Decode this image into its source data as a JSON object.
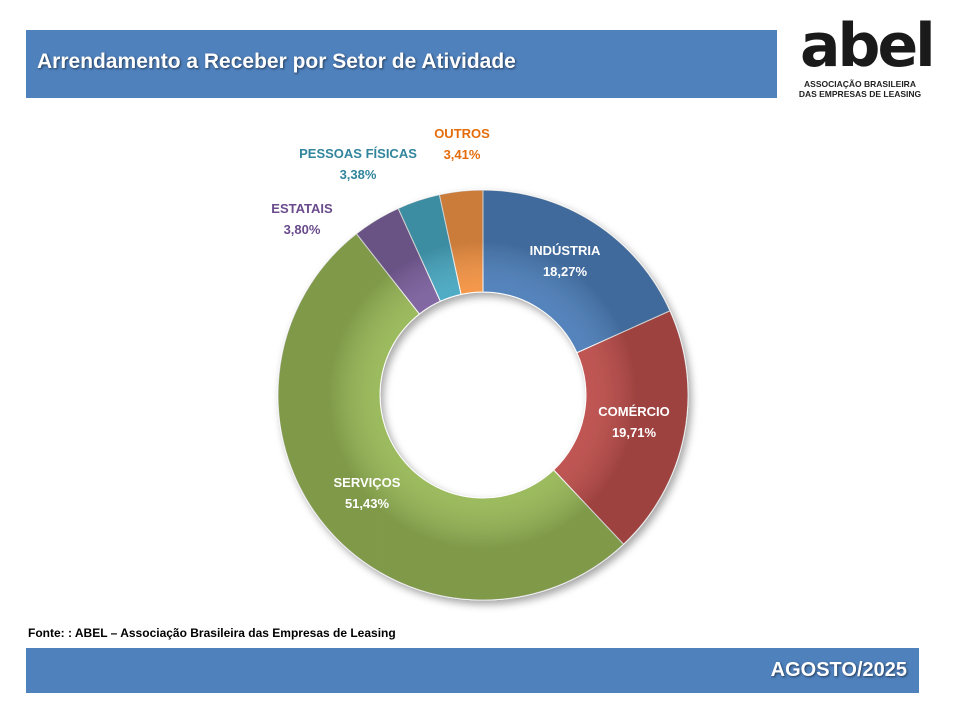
{
  "header": {
    "title": "Arrendamento a Receber por Setor de Atividade"
  },
  "logo": {
    "mark": "abel",
    "line1": "ASSOCIAÇÃO BRASILEIRA",
    "line2": "DAS EMPRESAS DE LEASING"
  },
  "chart_data": {
    "type": "pie",
    "variant": "donut",
    "title": "",
    "categories": [
      "INDÚSTRIA",
      "COMÉRCIO",
      "SERVIÇOS",
      "ESTATAIS",
      "PESSOAS FÍSICAS",
      "OUTROS"
    ],
    "values": [
      18.27,
      19.71,
      51.43,
      3.8,
      3.38,
      3.41
    ],
    "value_labels": [
      "18,27%",
      "19,71%",
      "51,43%",
      "3,80%",
      "3,38%",
      "3,41%"
    ],
    "colors": [
      "#4f81bd",
      "#c0504d",
      "#9bbb59",
      "#8064a2",
      "#4bacc6",
      "#f79646"
    ],
    "label_colors": [
      "#ffffff",
      "#ffffff",
      "#ffffff",
      "#6a4b8c",
      "#31859c",
      "#e46c0a"
    ],
    "unit": "%",
    "legend": "none"
  },
  "footer": {
    "source": "Fonte: : ABEL – Associação Brasileira das Empresas de Leasing",
    "date": "AGOSTO/2025"
  }
}
